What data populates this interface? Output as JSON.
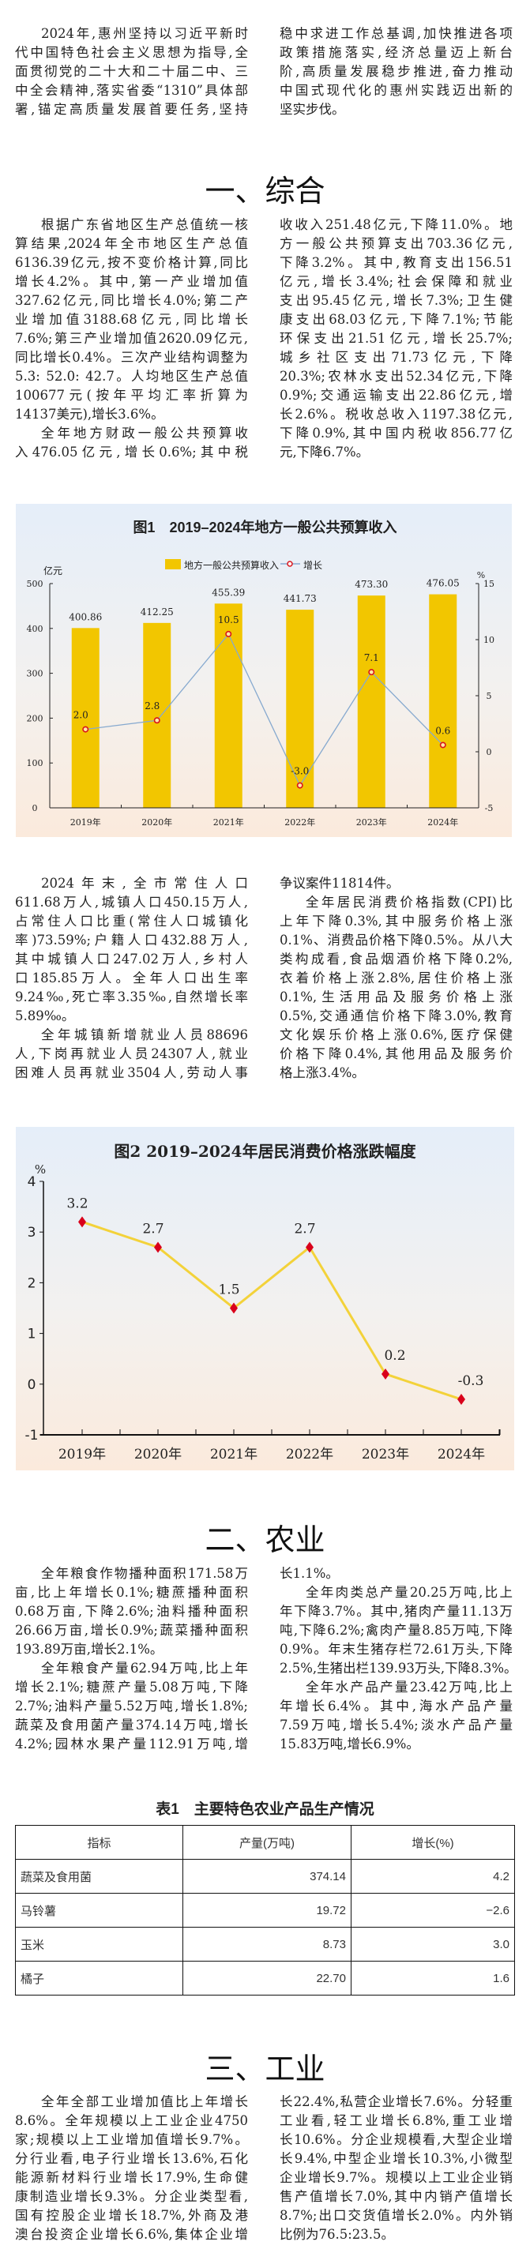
{
  "intro": {
    "left": [
      {
        "indent": true,
        "lines": [
          "2024年,惠州坚持以习近平新时",
          "代中国特色社会主义思想为指导,全",
          "面贯彻党的二十大和二十届二中、三",
          "中全会精神,落实省委“1310”具体部",
          "署,锚定高质量发展首要任务,坚持"
        ],
        "end": false
      }
    ],
    "right": [
      {
        "indent": false,
        "lines": [
          "稳中求进工作总基调,加快推进各项",
          "政策措施落实,经济总量迈上新台",
          "阶,高质量发展稳步推进,奋力推动",
          "中国式现代化的惠州实践迈出新的",
          "坚实步伐。"
        ],
        "end": true
      }
    ]
  },
  "sections": [
    {
      "heading": "一、综合"
    },
    {
      "heading": "二、农业"
    },
    {
      "heading": "三、工业"
    }
  ],
  "general": {
    "left": [
      {
        "indent": true,
        "lines": [
          "根据广东省地区生产总值统一核",
          "算结果,2024年全市地区生产总值",
          "6136.39亿元,按不变价格计算,同比",
          "增长4.2%。其中,第一产业增加值",
          "327.62亿元,同比增长4.0%;第二产",
          "业增加值3188.68亿元,同比增长",
          "7.6%;第三产业增加值2620.09亿元,",
          "同比增长0.4%。三次产业结构调整为",
          "5.3: 52.0: 42.7。人均地区生产总值",
          "100677元(按年平均汇率折算为",
          "14137美元),增长3.6%。"
        ],
        "end": true
      },
      {
        "indent": true,
        "lines": [
          "全年地方财政一般公共预算收",
          "入476.05亿元,增长0.6%;其中税"
        ],
        "end": false
      }
    ],
    "right": [
      {
        "indent": false,
        "lines": [
          "收收入251.48亿元,下降11.0%。地",
          "方一般公共预算支出703.36亿元,",
          "下降3.2%。其中,教育支出156.51",
          "亿元,增长3.4%;社会保障和就业",
          "支出95.45亿元,增长7.3%;卫生健",
          "康支出68.03亿元,下降7.1%;节能",
          "环保支出21.51亿元,增长25.7%;",
          "城乡社区支出71.73亿元,下降",
          "20.3%;农林水支出52.34亿元,下降",
          "0.9%;交通运输支出22.86亿元,增",
          "长2.6%。税收总收入1197.38亿元,",
          "下降0.9%,其中国内税收856.77亿",
          "元,下降6.7%。"
        ],
        "end": true
      }
    ]
  },
  "population": {
    "left": [
      {
        "indent": true,
        "lines": [
          "2024年末,全市常住人口",
          "611.68万人,城镇人口450.15万人,",
          "占常住人口比重(常住人口城镇化",
          "率)73.59%;户籍人口432.88万人,",
          "其中城镇人口247.02万人,乡村人",
          "口185.85万人。全年人口出生率",
          "9.24‰,死亡率3.35‰,自然增长率",
          "5.89‰。"
        ],
        "end": true
      },
      {
        "indent": true,
        "lines": [
          "全年城镇新增就业人员88696",
          "人,下岗再就业人员24307人,就业",
          "困难人员再就业3504人,劳动人事"
        ],
        "end": false
      }
    ],
    "right": [
      {
        "indent": false,
        "lines": [
          "争议案件11814件。"
        ],
        "end": true
      },
      {
        "indent": true,
        "lines": [
          "全年居民消费价格指数(CPI)比",
          "上年下降0.3%,其中服务价格上涨",
          "0.1%、消费品价格下降0.5%。从八大",
          "类构成看,食品烟酒价格下降0.2%,",
          "衣着价格上涨2.8%,居住价格上涨",
          "0.1%,生活用品及服务价格上涨",
          "0.5%,交通通信价格下降3.0%,教育",
          "文化娱乐价格上涨0.6%,医疗保健",
          "价格下降0.4%,其他用品及服务价",
          "格上涨3.4%。"
        ],
        "end": true
      }
    ]
  },
  "agriculture": {
    "left": [
      {
        "indent": true,
        "lines": [
          "全年粮食作物播种面积171.58万",
          "亩,比上年增长0.1%;糖蔗播种面积",
          "0.68万亩,下降2.6%;油料播种面积",
          "26.66万亩,增长0.9%;蔬菜播种面积",
          "193.89万亩,增长2.1%。"
        ],
        "end": true
      },
      {
        "indent": true,
        "lines": [
          "全年粮食产量62.94万吨,比上年",
          "增长2.1%;糖蔗产量5.08万吨,下降",
          "2.7%;油料产量5.52万吨,增长1.8%;",
          "蔬菜及食用菌产量374.14万吨,增长",
          "4.2%;园林水果产量112.91万吨,增"
        ],
        "end": false
      }
    ],
    "right": [
      {
        "indent": false,
        "lines": [
          "长1.1%。"
        ],
        "end": true
      },
      {
        "indent": true,
        "lines": [
          "全年肉类总产量20.25万吨,比上",
          "年下降3.7%。其中,猪肉产量11.13万",
          "吨,下降6.2%;禽肉产量8.85万吨,下降",
          "0.9%。年末生猪存栏72.61万头,下降",
          "2.5%,生猪出栏139.93万头,下降8.3%。"
        ],
        "end": true
      },
      {
        "indent": true,
        "lines": [
          "全年水产品产量23.42万吨,比上",
          "年增长6.4%。其中,海水产品产量",
          "7.59万吨,增长5.4%;淡水产品产量",
          "15.83万吨,增长6.9%。"
        ],
        "end": true
      }
    ]
  },
  "industry": {
    "left": [
      {
        "indent": true,
        "lines": [
          "全年全部工业增加值比上年增长",
          "8.6%。全年规模以上工业企业4750",
          "家;规模以上工业增加值增长9.7%。",
          "分行业看,电子行业增长13.6%,石化",
          "能源新材料行业增长17.9%,生命健",
          "康制造业增长9.3%。分企业类型看,",
          "国有控股企业增长18.7%,外商及港",
          "澳台投资企业增长6.6%,集体企业增"
        ],
        "end": false
      }
    ],
    "right": [
      {
        "indent": false,
        "lines": [
          "长22.4%,私营企业增长7.6%。分轻重",
          "工业看,轻工业增长6.8%,重工业增",
          "长10.6%。分企业规模看,大型企业增",
          "长9.4%,中型企业增长10.3%,小微型",
          "企业增长9.7%。规模以上工业企业销",
          "售产值增长7.0%,其中内销产值增长",
          "8.7%;出口交货值增长2.0%。内外销",
          "比例为76.5:23.5。"
        ],
        "end": true
      }
    ]
  },
  "table1": {
    "title": "表1　主要特色农业产品生产情况",
    "headers": [
      "指标",
      "产量(万吨)",
      "增长(%)"
    ],
    "rows": [
      [
        "蔬菜及食用菌",
        "374.14",
        "4.2"
      ],
      [
        "马铃薯",
        "19.72",
        "−2.6"
      ],
      [
        "玉米",
        "8.73",
        "3.0"
      ],
      [
        "橘子",
        "22.70",
        "1.6"
      ]
    ]
  },
  "chart_data": [
    {
      "type": "bar+line",
      "title": "图1　2019–2024年地方一般公共预算收入",
      "categories": [
        "2019年",
        "2020年",
        "2021年",
        "2022年",
        "2023年",
        "2024年"
      ],
      "series": [
        {
          "name": "地方一般公共预算收入",
          "type": "bar",
          "axis": "left",
          "values": [
            400.86,
            412.25,
            455.39,
            441.73,
            473.3,
            476.05
          ],
          "labels": [
            "400.86",
            "412.25",
            "455.39",
            "441.73",
            "473.30",
            "476.05"
          ]
        },
        {
          "name": "增长",
          "type": "line",
          "axis": "right",
          "values": [
            2.0,
            2.8,
            10.5,
            -3.0,
            7.1,
            0.6
          ],
          "labels": [
            "2.0",
            "2.8",
            "10.5",
            "-3.0",
            "7.1",
            "0.6"
          ]
        }
      ],
      "ylabel_left": "亿元",
      "ylim_left": [
        0,
        500
      ],
      "yticks_left": [
        "0",
        "100",
        "200",
        "300",
        "400",
        "500"
      ],
      "ylabel_right": "%",
      "ylim_right": [
        -5,
        15
      ],
      "yticks_right": [
        "-5",
        "0",
        "5",
        "10",
        "15"
      ],
      "legend": "top-center",
      "grid": false,
      "colors": {
        "bar": "#f2c600",
        "line": "#86a9cf",
        "marker": "#d9141b"
      }
    },
    {
      "type": "line",
      "title": "图2 2019–2024年居民消费价格涨跌幅度",
      "categories": [
        "2019年",
        "2020年",
        "2021年",
        "2022年",
        "2023年",
        "2024年"
      ],
      "values": [
        3.2,
        2.7,
        1.5,
        2.7,
        0.2,
        -0.3
      ],
      "labels": [
        "3.2",
        "2.7",
        "1.5",
        "2.7",
        "0.2",
        "-0.3"
      ],
      "ylabel": "%",
      "ylim": [
        -1,
        4
      ],
      "yticks": [
        "-1",
        "0",
        "1",
        "2",
        "3",
        "4"
      ],
      "grid": false,
      "colors": {
        "line": "#f3d23a",
        "marker": "#d9001b"
      }
    }
  ]
}
